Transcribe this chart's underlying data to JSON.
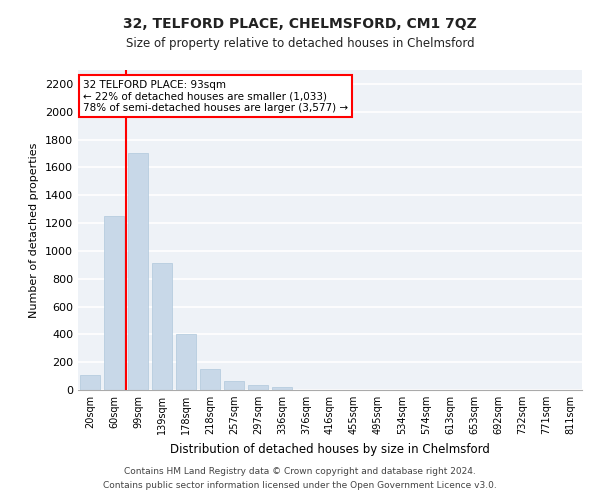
{
  "title": "32, TELFORD PLACE, CHELMSFORD, CM1 7QZ",
  "subtitle": "Size of property relative to detached houses in Chelmsford",
  "xlabel": "Distribution of detached houses by size in Chelmsford",
  "ylabel": "Number of detached properties",
  "bar_color": "#c8d8e8",
  "bar_edge_color": "#b0c8dc",
  "background_color": "#eef2f7",
  "grid_color": "#ffffff",
  "fig_background": "#ffffff",
  "categories": [
    "20sqm",
    "60sqm",
    "99sqm",
    "139sqm",
    "178sqm",
    "218sqm",
    "257sqm",
    "297sqm",
    "336sqm",
    "376sqm",
    "416sqm",
    "455sqm",
    "495sqm",
    "534sqm",
    "574sqm",
    "613sqm",
    "653sqm",
    "692sqm",
    "732sqm",
    "771sqm",
    "811sqm"
  ],
  "values": [
    110,
    1250,
    1700,
    910,
    400,
    150,
    65,
    35,
    25,
    0,
    0,
    0,
    0,
    0,
    0,
    0,
    0,
    0,
    0,
    0,
    0
  ],
  "ylim": [
    0,
    2300
  ],
  "yticks": [
    0,
    200,
    400,
    600,
    800,
    1000,
    1200,
    1400,
    1600,
    1800,
    2000,
    2200
  ],
  "red_line_x": 1.5,
  "annotation_title": "32 TELFORD PLACE: 93sqm",
  "annotation_line1": "← 22% of detached houses are smaller (1,033)",
  "annotation_line2": "78% of semi-detached houses are larger (3,577) →",
  "footer1": "Contains HM Land Registry data © Crown copyright and database right 2024.",
  "footer2": "Contains public sector information licensed under the Open Government Licence v3.0."
}
